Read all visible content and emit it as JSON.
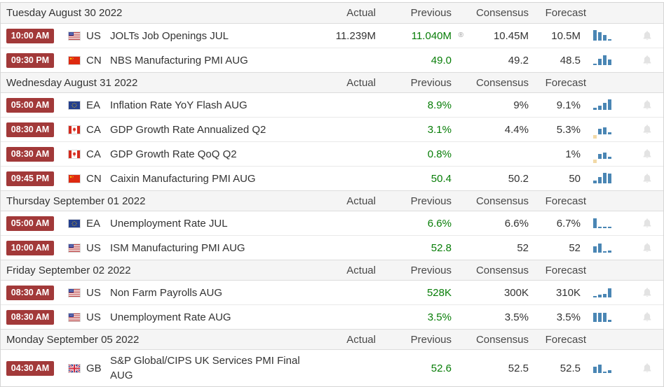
{
  "colors": {
    "time_badge_bg": "#a23939",
    "previous_value_green": "#077d07",
    "chart_bar_blue": "#4a86b4",
    "chart_bar_negative_tan": "#f2d9a6",
    "bell_gray": "#e3e3e3",
    "section_header_bg": "#f5f5f5",
    "row_border": "#dcdcdc",
    "text": "#333333"
  },
  "column_headers": {
    "actual": "Actual",
    "previous": "Previous",
    "consensus": "Consensus",
    "forecast": "Forecast"
  },
  "sections": [
    {
      "date": "Tuesday August 30 2022",
      "rows": [
        {
          "time": "10:00 AM",
          "country": "US",
          "flag": "us",
          "event": "JOLTs Job Openings JUL",
          "actual": "11.239M",
          "previous": "11.040M",
          "revision_marker": "®",
          "consensus": "10.45M",
          "forecast": "10.5M",
          "chart_bars": [
            {
              "h": 15
            },
            {
              "h": 12
            },
            {
              "h": 8
            },
            {
              "h": 2
            }
          ]
        },
        {
          "time": "09:30 PM",
          "country": "CN",
          "flag": "cn",
          "event": "NBS Manufacturing PMI AUG",
          "actual": "",
          "previous": "49.0",
          "consensus": "49.2",
          "forecast": "48.5",
          "chart_bars": [
            {
              "h": 2
            },
            {
              "h": 9
            },
            {
              "h": 14
            },
            {
              "h": 8
            }
          ]
        }
      ]
    },
    {
      "date": "Wednesday August 31 2022",
      "rows": [
        {
          "time": "05:00 AM",
          "country": "EA",
          "flag": "ea",
          "event": "Inflation Rate YoY Flash AUG",
          "actual": "",
          "previous": "8.9%",
          "consensus": "9%",
          "forecast": "9.1%",
          "chart_bars": [
            {
              "h": 3
            },
            {
              "h": 6
            },
            {
              "h": 10
            },
            {
              "h": 15
            }
          ]
        },
        {
          "time": "08:30 AM",
          "country": "CA",
          "flag": "ca",
          "event": "GDP Growth Rate Annualized Q2",
          "actual": "",
          "previous": "3.1%",
          "consensus": "4.4%",
          "forecast": "5.3%",
          "chart_bars": [
            {
              "h": 5,
              "neg": true
            },
            {
              "h": 8
            },
            {
              "h": 10
            },
            {
              "h": 3
            }
          ]
        },
        {
          "time": "08:30 AM",
          "country": "CA",
          "flag": "ca",
          "event": "GDP Growth Rate QoQ Q2",
          "actual": "",
          "previous": "0.8%",
          "consensus": "",
          "forecast": "1%",
          "chart_bars": [
            {
              "h": 5,
              "neg": true
            },
            {
              "h": 7
            },
            {
              "h": 9
            },
            {
              "h": 3
            }
          ]
        },
        {
          "time": "09:45 PM",
          "country": "CN",
          "flag": "cn",
          "event": "Caixin Manufacturing PMI AUG",
          "actual": "",
          "previous": "50.4",
          "consensus": "50.2",
          "forecast": "50",
          "chart_bars": [
            {
              "h": 4
            },
            {
              "h": 9
            },
            {
              "h": 15
            },
            {
              "h": 14
            }
          ]
        }
      ]
    },
    {
      "date": "Thursday September 01 2022",
      "rows": [
        {
          "time": "05:00 AM",
          "country": "EA",
          "flag": "ea",
          "event": "Unemployment Rate JUL",
          "actual": "",
          "previous": "6.6%",
          "consensus": "6.6%",
          "forecast": "6.7%",
          "chart_bars": [
            {
              "h": 14
            },
            {
              "h": 2
            },
            {
              "h": 2
            },
            {
              "h": 2
            }
          ]
        },
        {
          "time": "10:00 AM",
          "country": "US",
          "flag": "us",
          "event": "ISM Manufacturing PMI AUG",
          "actual": "",
          "previous": "52.8",
          "consensus": "52",
          "forecast": "52",
          "chart_bars": [
            {
              "h": 9
            },
            {
              "h": 13
            },
            {
              "h": 2
            },
            {
              "h": 3
            }
          ]
        }
      ]
    },
    {
      "date": "Friday September 02 2022",
      "rows": [
        {
          "time": "08:30 AM",
          "country": "US",
          "flag": "us",
          "event": "Non Farm Payrolls AUG",
          "actual": "",
          "previous": "528K",
          "consensus": "300K",
          "forecast": "310K",
          "chart_bars": [
            {
              "h": 2
            },
            {
              "h": 4
            },
            {
              "h": 5
            },
            {
              "h": 13
            }
          ]
        },
        {
          "time": "08:30 AM",
          "country": "US",
          "flag": "us",
          "event": "Unemployment Rate AUG",
          "actual": "",
          "previous": "3.5%",
          "consensus": "3.5%",
          "forecast": "3.5%",
          "chart_bars": [
            {
              "h": 13
            },
            {
              "h": 13
            },
            {
              "h": 13
            },
            {
              "h": 3
            }
          ]
        }
      ]
    },
    {
      "date": "Monday September 05 2022",
      "rows": [
        {
          "time": "04:30 AM",
          "country": "GB",
          "flag": "gb",
          "event": "S&P Global/CIPS UK Services PMI Final AUG",
          "actual": "",
          "previous": "52.6",
          "consensus": "52.5",
          "forecast": "52.5",
          "chart_bars": [
            {
              "h": 9
            },
            {
              "h": 12
            },
            {
              "h": 2
            },
            {
              "h": 4
            }
          ]
        }
      ]
    }
  ]
}
